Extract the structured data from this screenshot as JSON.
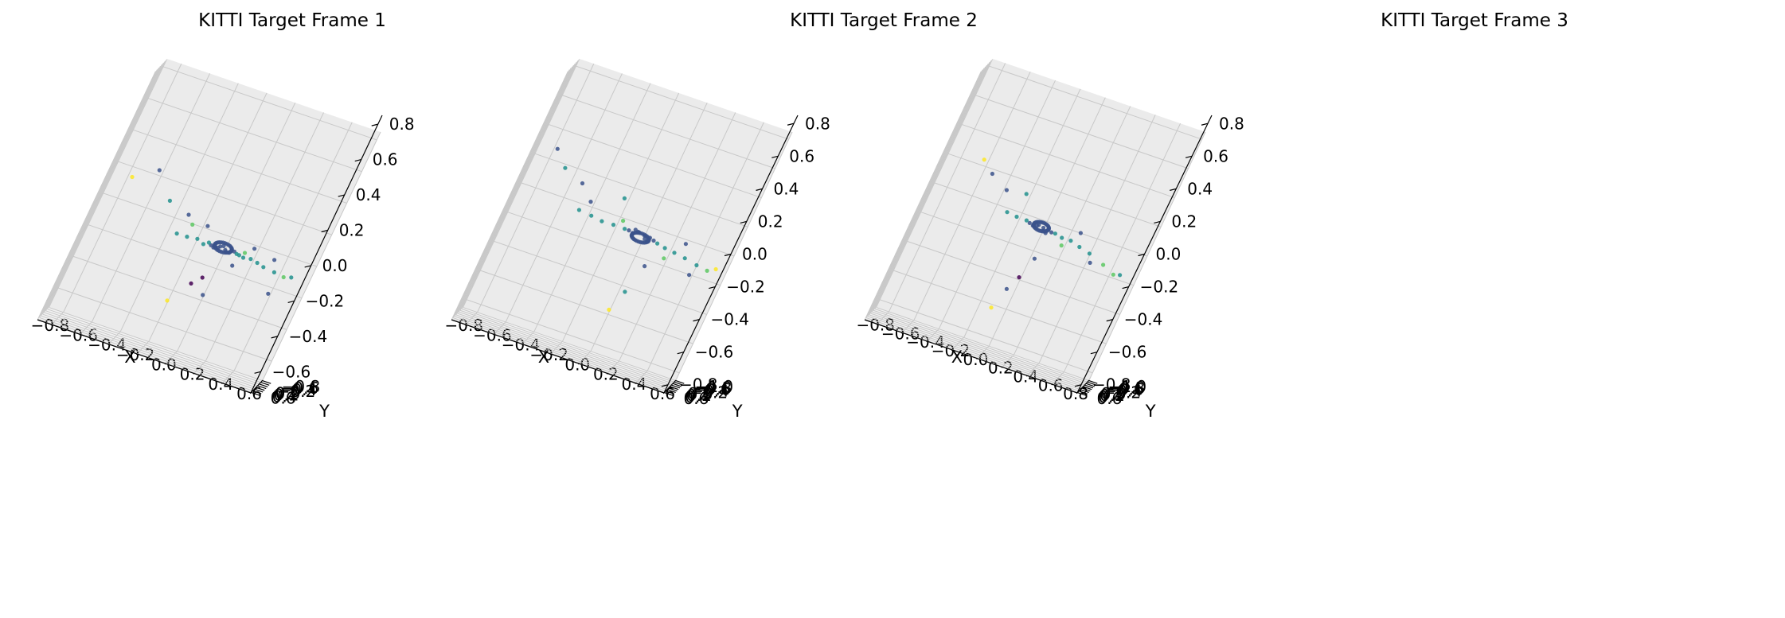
{
  "figure": {
    "titles": [
      "KITTI Target Frame 1",
      "KITTI Target Frame 2",
      "KITTI Target Frame 3"
    ]
  },
  "chart_data": [
    {
      "type": "scatter",
      "title": "KITTI Target Frame 1",
      "projection": "3d",
      "xlabel": "X",
      "ylabel": "Y",
      "zlabel": "",
      "xlim": [
        -0.9,
        0.6
      ],
      "ylim": [
        -0.85,
        0.65
      ],
      "zlim": [
        -0.72,
        0.85
      ],
      "xticks": [
        "-0.8",
        "-0.6",
        "-0.4",
        "-0.2",
        "0.0",
        "0.2",
        "0.4",
        "0.6"
      ],
      "yticks": [
        "-0.8",
        "-0.6",
        "-0.4",
        "-0.2",
        "0.0",
        "0.2",
        "0.4",
        "0.6"
      ],
      "zticks": [
        "-0.6",
        "-0.4",
        "-0.2",
        "0.0",
        "0.2",
        "0.4",
        "0.6",
        "0.8"
      ],
      "colormap": "viridis",
      "colors": [
        "#440154",
        "#3b528b",
        "#21908d",
        "#5dc863",
        "#fde725"
      ],
      "grid": true,
      "points": [
        [
          0.02,
          0.0,
          -0.03,
          1
        ],
        [
          -0.02,
          0.0,
          -0.02,
          1
        ],
        [
          0.06,
          0.01,
          -0.02,
          1
        ],
        [
          -0.05,
          -0.01,
          -0.03,
          1
        ],
        [
          0.03,
          -0.02,
          -0.04,
          1
        ],
        [
          -0.03,
          0.02,
          -0.03,
          1
        ],
        [
          0.0,
          0.03,
          -0.01,
          1
        ],
        [
          0.08,
          0.02,
          -0.02,
          1
        ],
        [
          -0.08,
          0.01,
          -0.03,
          1
        ],
        [
          0.05,
          -0.04,
          -0.04,
          1
        ],
        [
          -0.06,
          -0.03,
          -0.04,
          1
        ],
        [
          0.1,
          0.0,
          -0.03,
          2
        ],
        [
          -0.1,
          0.0,
          -0.02,
          2
        ],
        [
          0.12,
          0.04,
          -0.03,
          2
        ],
        [
          -0.13,
          -0.02,
          -0.04,
          2
        ],
        [
          0.15,
          -0.03,
          -0.04,
          2
        ],
        [
          0.2,
          0.02,
          -0.03,
          2
        ],
        [
          -0.18,
          0.02,
          -0.02,
          2
        ],
        [
          0.25,
          0.0,
          -0.04,
          2
        ],
        [
          -0.25,
          -0.02,
          -0.03,
          2
        ],
        [
          0.3,
          0.03,
          -0.05,
          2
        ],
        [
          0.38,
          0.0,
          -0.06,
          2
        ],
        [
          -0.32,
          0.01,
          -0.03,
          2
        ],
        [
          0.45,
          -0.02,
          -0.07,
          3
        ],
        [
          0.2,
          0.3,
          0.05,
          1
        ],
        [
          -0.15,
          0.2,
          0.08,
          1
        ],
        [
          0.1,
          -0.3,
          -0.12,
          1
        ],
        [
          -0.05,
          -0.45,
          -0.25,
          0
        ],
        [
          -0.1,
          -0.4,
          -0.3,
          0
        ],
        [
          0.0,
          -0.55,
          -0.35,
          1
        ],
        [
          -0.3,
          0.1,
          0.1,
          1
        ],
        [
          -0.45,
          0.25,
          0.15,
          2
        ],
        [
          0.35,
          0.2,
          0.02,
          1
        ],
        [
          0.5,
          0.1,
          -0.05,
          2
        ],
        [
          -0.6,
          0.3,
          0.3,
          1
        ],
        [
          -0.75,
          0.1,
          0.2,
          4
        ],
        [
          -0.2,
          -0.6,
          -0.45,
          4
        ],
        [
          0.15,
          0.15,
          0.0,
          3
        ],
        [
          -0.25,
          0.05,
          0.05,
          3
        ],
        [
          0.4,
          -0.2,
          -0.2,
          1
        ]
      ]
    },
    {
      "type": "scatter",
      "title": "KITTI Target Frame 2",
      "projection": "3d",
      "xlabel": "X",
      "ylabel": "Y",
      "zlabel": "",
      "xlim": [
        -0.9,
        0.6
      ],
      "ylim": [
        -1.05,
        0.65
      ],
      "zlim": [
        -0.85,
        0.85
      ],
      "xticks": [
        "-0.8",
        "-0.6",
        "-0.4",
        "-0.2",
        "0.0",
        "0.2",
        "0.4",
        "0.6"
      ],
      "yticks": [
        "-1.0",
        "-0.8",
        "-0.6",
        "-0.4",
        "-0.2",
        "0.0",
        "0.2",
        "0.4",
        "0.6"
      ],
      "zticks": [
        "-0.8",
        "-0.6",
        "-0.4",
        "-0.2",
        "0.0",
        "0.2",
        "0.4",
        "0.6",
        "0.8"
      ],
      "colormap": "viridis",
      "colors": [
        "#440154",
        "#3b528b",
        "#21908d",
        "#5dc863",
        "#fde725"
      ],
      "grid": true,
      "points": [
        [
          0.02,
          0.0,
          0.0,
          1
        ],
        [
          -0.03,
          0.0,
          0.01,
          1
        ],
        [
          0.06,
          0.02,
          0.0,
          1
        ],
        [
          -0.06,
          -0.02,
          -0.01,
          1
        ],
        [
          0.03,
          -0.03,
          -0.02,
          1
        ],
        [
          -0.02,
          0.03,
          0.01,
          1
        ],
        [
          0.09,
          0.01,
          -0.01,
          1
        ],
        [
          -0.09,
          0.0,
          0.0,
          1
        ],
        [
          0.05,
          -0.05,
          -0.03,
          1
        ],
        [
          -0.05,
          0.05,
          0.02,
          1
        ],
        [
          0.12,
          0.0,
          -0.02,
          2
        ],
        [
          -0.12,
          0.0,
          0.0,
          2
        ],
        [
          0.18,
          0.03,
          -0.03,
          2
        ],
        [
          -0.2,
          -0.02,
          0.0,
          2
        ],
        [
          0.25,
          0.0,
          -0.04,
          2
        ],
        [
          -0.28,
          0.02,
          0.0,
          2
        ],
        [
          0.33,
          0.02,
          -0.05,
          2
        ],
        [
          -0.36,
          0.0,
          0.01,
          2
        ],
        [
          0.42,
          -0.02,
          -0.07,
          2
        ],
        [
          -0.45,
          0.02,
          0.02,
          2
        ],
        [
          0.5,
          0.0,
          -0.08,
          3
        ],
        [
          0.55,
          0.05,
          -0.05,
          4
        ],
        [
          -0.5,
          0.3,
          0.2,
          1
        ],
        [
          -0.65,
          0.2,
          0.25,
          2
        ],
        [
          -0.4,
          0.15,
          0.1,
          1
        ],
        [
          0.1,
          -0.35,
          -0.2,
          1
        ],
        [
          0.05,
          -0.5,
          -0.4,
          2
        ],
        [
          0.0,
          -0.7,
          -0.55,
          4
        ],
        [
          0.3,
          0.25,
          0.05,
          1
        ],
        [
          0.4,
          -0.15,
          -0.15,
          1
        ],
        [
          -0.2,
          0.35,
          0.2,
          2
        ],
        [
          0.2,
          -0.1,
          -0.1,
          3
        ],
        [
          -0.15,
          0.1,
          0.05,
          3
        ],
        [
          -0.75,
          0.25,
          0.35,
          1
        ]
      ]
    },
    {
      "type": "scatter",
      "title": "KITTI Target Frame 3",
      "projection": "3d",
      "xlabel": "X",
      "ylabel": "Y",
      "zlabel": "",
      "xlim": [
        -0.9,
        0.8
      ],
      "ylim": [
        -1.05,
        0.65
      ],
      "zlim": [
        -0.85,
        0.85
      ],
      "xticks": [
        "-0.8",
        "-0.6",
        "-0.4",
        "-0.2",
        "0.0",
        "0.2",
        "0.4",
        "0.6",
        "0.8"
      ],
      "yticks": [
        "-1.0",
        "-0.8",
        "-0.6",
        "-0.4",
        "-0.2",
        "0.0",
        "0.2",
        "0.4",
        "0.6"
      ],
      "zticks": [
        "-0.8",
        "-0.6",
        "-0.4",
        "-0.2",
        "0.0",
        "0.2",
        "0.4",
        "0.6",
        "0.8"
      ],
      "colormap": "viridis",
      "colors": [
        "#440154",
        "#3b528b",
        "#21908d",
        "#5dc863",
        "#fde725"
      ],
      "grid": true,
      "points": [
        [
          0.02,
          0.05,
          0.02,
          1
        ],
        [
          -0.03,
          0.04,
          0.02,
          1
        ],
        [
          0.06,
          0.06,
          0.02,
          1
        ],
        [
          -0.06,
          0.02,
          0.01,
          1
        ],
        [
          0.03,
          0.0,
          0.0,
          1
        ],
        [
          -0.02,
          0.08,
          0.03,
          1
        ],
        [
          0.09,
          0.05,
          0.01,
          1
        ],
        [
          -0.09,
          0.04,
          0.02,
          1
        ],
        [
          0.05,
          -0.01,
          -0.01,
          1
        ],
        [
          0.12,
          0.05,
          0.01,
          2
        ],
        [
          -0.12,
          0.05,
          0.03,
          2
        ],
        [
          0.18,
          0.07,
          0.0,
          2
        ],
        [
          -0.2,
          0.03,
          0.03,
          2
        ],
        [
          0.25,
          0.05,
          0.0,
          2
        ],
        [
          -0.28,
          0.06,
          0.04,
          2
        ],
        [
          0.33,
          0.04,
          -0.02,
          2
        ],
        [
          0.42,
          0.02,
          -0.04,
          2
        ],
        [
          0.55,
          0.0,
          -0.08,
          3
        ],
        [
          0.65,
          -0.05,
          -0.12,
          3
        ],
        [
          -0.5,
          0.3,
          0.25,
          1
        ],
        [
          -0.35,
          0.25,
          0.18,
          1
        ],
        [
          0.05,
          -0.3,
          -0.2,
          1
        ],
        [
          0.0,
          -0.45,
          -0.35,
          0
        ],
        [
          -0.05,
          -0.55,
          -0.45,
          1
        ],
        [
          0.3,
          0.3,
          0.08,
          1
        ],
        [
          0.45,
          -0.1,
          -0.1,
          1
        ],
        [
          -0.6,
          0.35,
          0.32,
          4
        ],
        [
          -0.2,
          0.3,
          0.2,
          2
        ],
        [
          0.2,
          0.0,
          -0.05,
          3
        ],
        [
          -0.1,
          -0.7,
          -0.6,
          4
        ],
        [
          0.7,
          0.1,
          -0.1,
          2
        ]
      ]
    }
  ]
}
